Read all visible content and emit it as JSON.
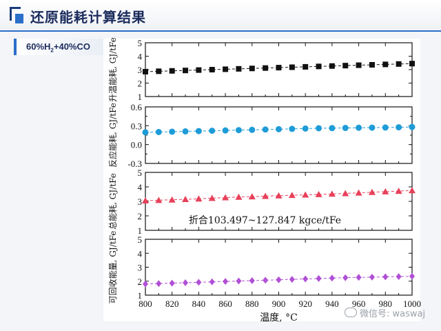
{
  "slide": {
    "title": "还原能耗计算结果",
    "gas_main": "60%H",
    "gas_sub": "2",
    "gas_rest": "+40%CO",
    "watermark": "微信号: waswaj"
  },
  "chart_data": [
    {
      "type": "line",
      "ylabel": "升温能耗, GJ/tFe",
      "ylim": [
        1,
        5
      ],
      "yticks": [
        1,
        2,
        3,
        4,
        5
      ],
      "x": [
        800,
        810,
        820,
        830,
        840,
        850,
        860,
        870,
        880,
        890,
        900,
        910,
        920,
        930,
        940,
        950,
        960,
        970,
        980,
        990,
        1000
      ],
      "series": [
        {
          "values": [
            2.85,
            2.88,
            2.91,
            2.94,
            2.97,
            3.0,
            3.03,
            3.06,
            3.09,
            3.12,
            3.15,
            3.18,
            3.21,
            3.24,
            3.27,
            3.3,
            3.33,
            3.36,
            3.39,
            3.42,
            3.45
          ],
          "marker": "square",
          "color": "#111111"
        }
      ]
    },
    {
      "type": "line",
      "ylabel": "反应能耗, GJ/tFe",
      "ylim": [
        -0.3,
        0.6
      ],
      "yticks": [
        "-0.3",
        "0.0",
        "0.3",
        "0.6"
      ],
      "yticks_minor": [
        -0.15,
        0.15,
        0.45
      ],
      "x": [
        800,
        810,
        820,
        830,
        840,
        850,
        860,
        870,
        880,
        890,
        900,
        910,
        920,
        930,
        940,
        950,
        960,
        970,
        980,
        990,
        1000
      ],
      "series": [
        {
          "values": [
            0.195,
            0.2,
            0.205,
            0.21,
            0.215,
            0.22,
            0.225,
            0.23,
            0.235,
            0.24,
            0.245,
            0.25,
            0.255,
            0.26,
            0.262,
            0.265,
            0.268,
            0.27,
            0.272,
            0.275,
            0.28
          ],
          "marker": "circle",
          "color": "#1e9cd7"
        }
      ]
    },
    {
      "type": "line",
      "ylabel": "总能耗, GJ/tFe",
      "ylim": [
        1,
        5
      ],
      "yticks": [
        1,
        2,
        3,
        4,
        5
      ],
      "annotation": "折合103.497~127.847 kgce/tFe",
      "x": [
        800,
        810,
        820,
        830,
        840,
        850,
        860,
        870,
        880,
        890,
        900,
        910,
        920,
        930,
        940,
        950,
        960,
        970,
        980,
        990,
        1000
      ],
      "series": [
        {
          "values": [
            3.05,
            3.08,
            3.11,
            3.14,
            3.18,
            3.22,
            3.26,
            3.3,
            3.33,
            3.36,
            3.39,
            3.42,
            3.45,
            3.48,
            3.51,
            3.55,
            3.59,
            3.63,
            3.67,
            3.71,
            3.75
          ],
          "marker": "triangle",
          "color": "#e8405a"
        }
      ]
    },
    {
      "type": "line",
      "ylabel": "可回收能量, GJ/tFe",
      "ylim": [
        1,
        5
      ],
      "yticks": [
        1,
        2,
        3,
        4,
        5
      ],
      "xlabel": "温度, °C",
      "xticks": [
        800,
        820,
        840,
        860,
        880,
        900,
        920,
        940,
        960,
        980,
        1000
      ],
      "x": [
        800,
        810,
        820,
        830,
        840,
        850,
        860,
        870,
        880,
        890,
        900,
        910,
        920,
        930,
        940,
        950,
        960,
        970,
        980,
        990,
        1000
      ],
      "series": [
        {
          "values": [
            1.8,
            1.83,
            1.86,
            1.89,
            1.92,
            1.95,
            1.98,
            2.01,
            2.04,
            2.07,
            2.1,
            2.13,
            2.16,
            2.19,
            2.22,
            2.25,
            2.27,
            2.29,
            2.31,
            2.33,
            2.35
          ],
          "marker": "diamond",
          "color": "#b14fd6"
        }
      ]
    }
  ]
}
